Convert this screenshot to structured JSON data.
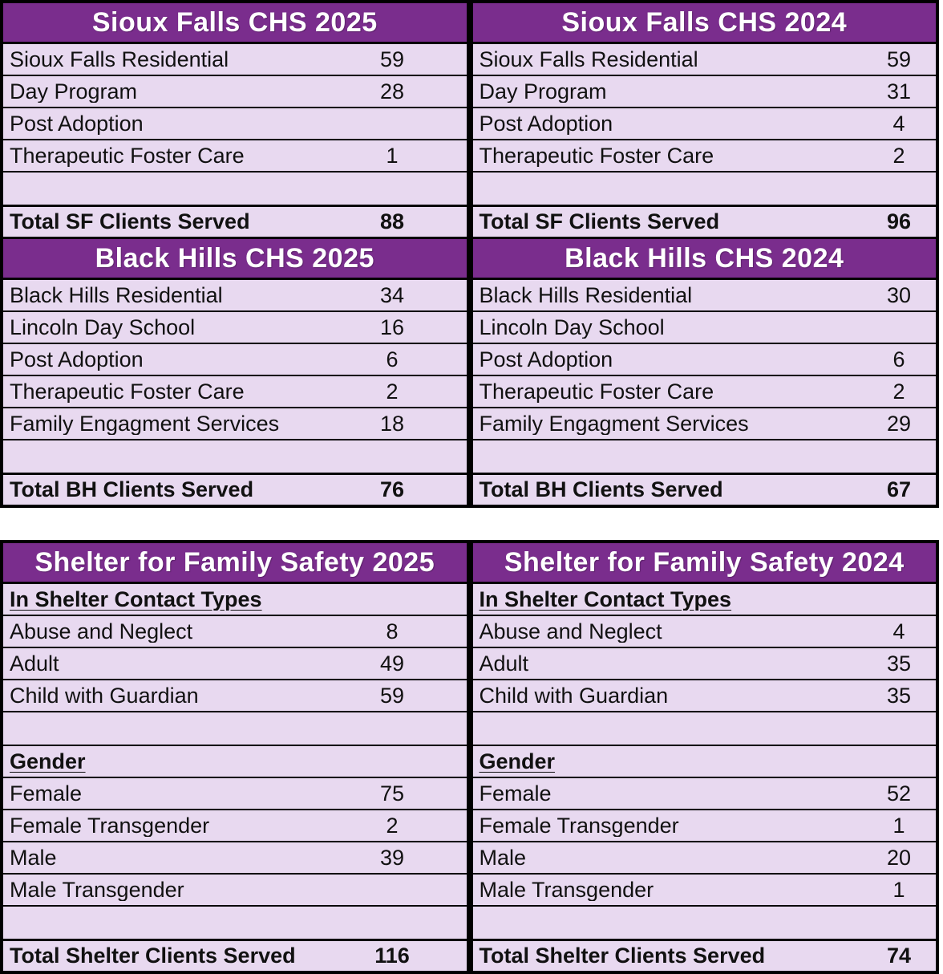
{
  "colors": {
    "header_bg": "#7A2D8D",
    "row_bg": "#E8D9F0",
    "border": "#000000",
    "header_text": "#FFFFFF",
    "body_text": "#111111"
  },
  "sf2025": {
    "title": "Sioux Falls CHS 2025",
    "rows": [
      {
        "label": "Sioux Falls Residential",
        "value": "59"
      },
      {
        "label": "Day Program",
        "value": "28"
      },
      {
        "label": "Post Adoption",
        "value": ""
      },
      {
        "label": "Therapeutic Foster Care",
        "value": "1"
      }
    ],
    "total": {
      "label": "Total SF Clients Served",
      "value": "88"
    }
  },
  "sf2024": {
    "title": "Sioux Falls CHS 2024",
    "rows": [
      {
        "label": "Sioux Falls Residential",
        "value": "59"
      },
      {
        "label": "Day Program",
        "value": "31"
      },
      {
        "label": "Post Adoption",
        "value": "4"
      },
      {
        "label": "Therapeutic Foster Care",
        "value": "2"
      }
    ],
    "total": {
      "label": "Total SF Clients Served",
      "value": "96"
    }
  },
  "bh2025": {
    "title": "Black Hills CHS 2025",
    "rows": [
      {
        "label": "Black Hills Residential",
        "value": "34"
      },
      {
        "label": "Lincoln Day School",
        "value": "16"
      },
      {
        "label": "Post Adoption",
        "value": "6"
      },
      {
        "label": "Therapeutic Foster Care",
        "value": "2"
      },
      {
        "label": "Family Engagment Services",
        "value": "18"
      }
    ],
    "total": {
      "label": "Total BH Clients Served",
      "value": "76"
    }
  },
  "bh2024": {
    "title": "Black Hills CHS 2024",
    "rows": [
      {
        "label": "Black Hills Residential",
        "value": "30"
      },
      {
        "label": "Lincoln Day School",
        "value": ""
      },
      {
        "label": "Post Adoption",
        "value": "6"
      },
      {
        "label": "Therapeutic Foster Care",
        "value": "2"
      },
      {
        "label": "Family Engagment Services",
        "value": "29"
      }
    ],
    "total": {
      "label": "Total BH Clients Served",
      "value": "67"
    }
  },
  "sh2025": {
    "title": "Shelter for Family Safety 2025",
    "section1": "In Shelter Contact Types",
    "contact_rows": [
      {
        "label": "Abuse and Neglect",
        "value": "8"
      },
      {
        "label": "Adult",
        "value": "49"
      },
      {
        "label": "Child with Guardian",
        "value": "59"
      }
    ],
    "section2": "Gender",
    "gender_rows": [
      {
        "label": "Female",
        "value": "75"
      },
      {
        "label": "Female Transgender",
        "value": "2"
      },
      {
        "label": "Male",
        "value": "39"
      },
      {
        "label": "Male Transgender",
        "value": ""
      }
    ],
    "total": {
      "label": "Total Shelter Clients Served",
      "value": "116"
    }
  },
  "sh2024": {
    "title": "Shelter for Family Safety 2024",
    "section1": "In Shelter Contact Types",
    "contact_rows": [
      {
        "label": "Abuse and Neglect",
        "value": "4"
      },
      {
        "label": "Adult",
        "value": "35"
      },
      {
        "label": "Child with Guardian",
        "value": "35"
      }
    ],
    "section2": "Gender",
    "gender_rows": [
      {
        "label": "Female",
        "value": "52"
      },
      {
        "label": "Female Transgender",
        "value": "1"
      },
      {
        "label": "Male",
        "value": "20"
      },
      {
        "label": "Male Transgender",
        "value": "1"
      }
    ],
    "total": {
      "label": "Total Shelter Clients Served",
      "value": "74"
    }
  }
}
